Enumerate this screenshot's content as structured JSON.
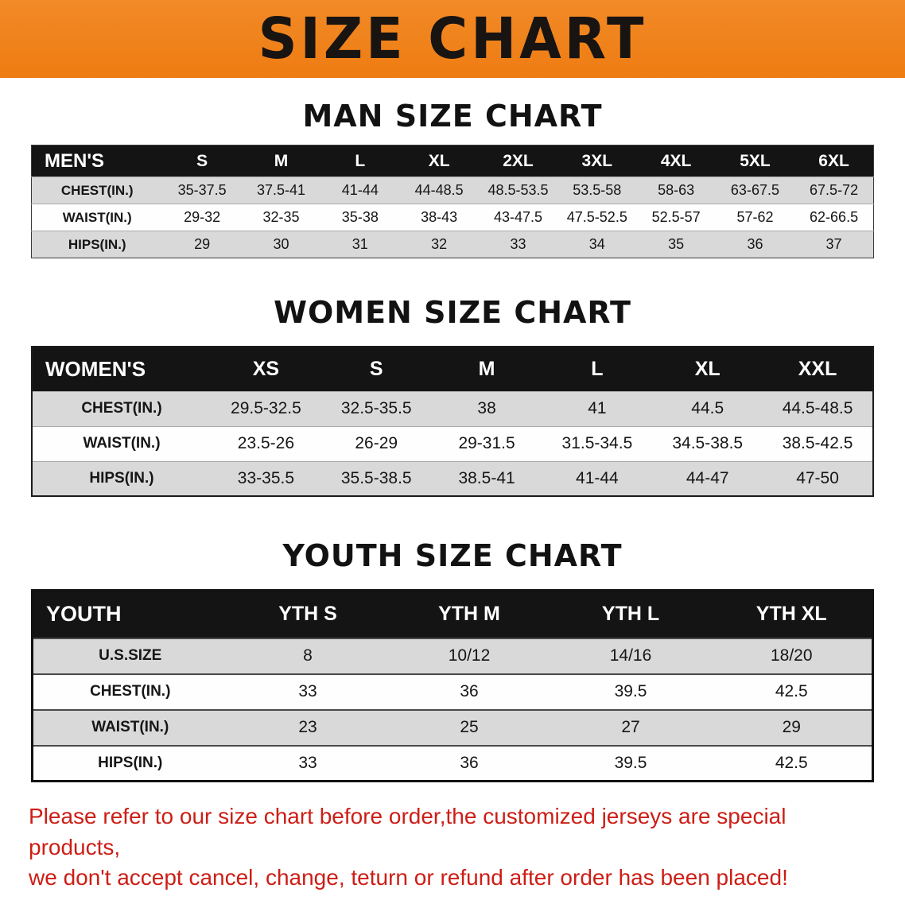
{
  "banner": {
    "title": "SIZE CHART"
  },
  "colors": {
    "banner_orange": "#ee7c12",
    "header_black": "#141414",
    "row_gray": "#d9d9d9",
    "footer_red": "#cc1e16"
  },
  "chart_data": [
    {
      "type": "table",
      "title": "MAN SIZE CHART",
      "header": [
        "MEN'S",
        "S",
        "M",
        "L",
        "XL",
        "2XL",
        "3XL",
        "4XL",
        "5XL",
        "6XL"
      ],
      "rows": [
        {
          "label": "CHEST(IN.)",
          "values": [
            "35-37.5",
            "37.5-41",
            "41-44",
            "44-48.5",
            "48.5-53.5",
            "53.5-58",
            "58-63",
            "63-67.5",
            "67.5-72"
          ]
        },
        {
          "label": "WAIST(IN.)",
          "values": [
            "29-32",
            "32-35",
            "35-38",
            "38-43",
            "43-47.5",
            "47.5-52.5",
            "52.5-57",
            "57-62",
            "62-66.5"
          ]
        },
        {
          "label": "HIPS(IN.)",
          "values": [
            "29",
            "30",
            "31",
            "32",
            "33",
            "34",
            "35",
            "36",
            "37"
          ]
        }
      ]
    },
    {
      "type": "table",
      "title": "WOMEN SIZE CHART",
      "header": [
        "WOMEN'S",
        "XS",
        "S",
        "M",
        "L",
        "XL",
        "XXL"
      ],
      "rows": [
        {
          "label": "CHEST(IN.)",
          "values": [
            "29.5-32.5",
            "32.5-35.5",
            "38",
            "41",
            "44.5",
            "44.5-48.5"
          ]
        },
        {
          "label": "WAIST(IN.)",
          "values": [
            "23.5-26",
            "26-29",
            "29-31.5",
            "31.5-34.5",
            "34.5-38.5",
            "38.5-42.5"
          ]
        },
        {
          "label": "HIPS(IN.)",
          "values": [
            "33-35.5",
            "35.5-38.5",
            "38.5-41",
            "41-44",
            "44-47",
            "47-50"
          ]
        }
      ]
    },
    {
      "type": "table",
      "title": "YOUTH SIZE CHART",
      "header": [
        "YOUTH",
        "YTH S",
        "YTH M",
        "YTH L",
        "YTH XL"
      ],
      "rows": [
        {
          "label": "U.S.SIZE",
          "values": [
            "8",
            "10/12",
            "14/16",
            "18/20"
          ]
        },
        {
          "label": "CHEST(IN.)",
          "values": [
            "33",
            "36",
            "39.5",
            "42.5"
          ]
        },
        {
          "label": "WAIST(IN.)",
          "values": [
            "23",
            "25",
            "27",
            "29"
          ]
        },
        {
          "label": "HIPS(IN.)",
          "values": [
            "33",
            "36",
            "39.5",
            "42.5"
          ]
        }
      ]
    }
  ],
  "footer": {
    "line1": "Please refer to our size chart before order,the customized jerseys are special products,",
    "line2": "we don't accept cancel, change, teturn or refund after order has been placed!"
  }
}
